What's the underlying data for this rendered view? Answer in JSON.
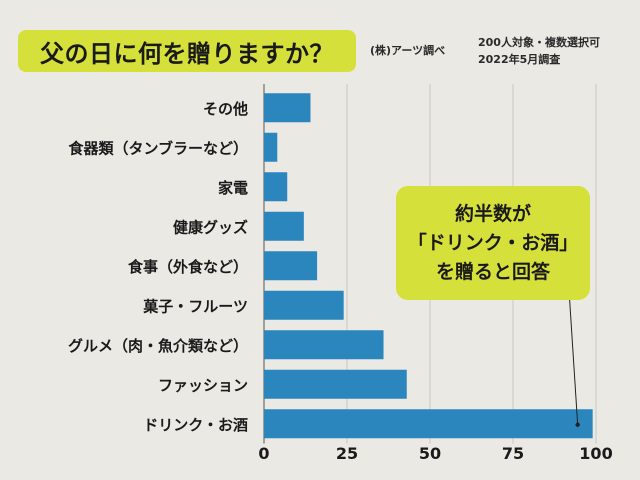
{
  "header": {
    "title": "父の日に何を贈りますか？",
    "source": "(株)アーツ調べ",
    "note_lines": [
      "200人対象・複数選択可",
      "2022年5月調査"
    ]
  },
  "annotation": {
    "lines": [
      "約半数が",
      "「ドリンク・お酒」",
      "を贈ると回答"
    ]
  },
  "colors": {
    "background": "#ebe9e4",
    "bar": "#2a86bd",
    "highlight": "#d6e03a",
    "grid": "#c9c7c2",
    "text": "#1a1a1a"
  },
  "chart_data": {
    "type": "bar",
    "orientation": "horizontal",
    "title": "父の日に何を贈りますか？",
    "categories": [
      "その他",
      "食器類（タンブラーなど）",
      "家電",
      "健康グッズ",
      "食事（外食など）",
      "菓子・フルーツ",
      "グルメ（肉・魚介類など）",
      "ファッション",
      "ドリンク・お酒"
    ],
    "values": [
      14,
      4,
      7,
      12,
      16,
      24,
      36,
      43,
      99
    ],
    "xlim": [
      0,
      100
    ],
    "xticks": [
      0,
      25,
      50,
      75,
      100
    ],
    "grid": true,
    "xlabel": "",
    "ylabel": ""
  }
}
